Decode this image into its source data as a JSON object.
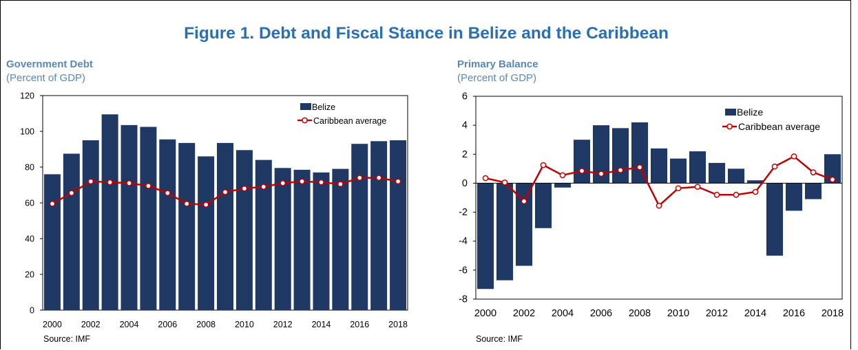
{
  "figure_title": "Figure 1. Debt and Fiscal Stance in Belize and the Caribbean",
  "colors": {
    "bar": "#1f3864",
    "line": "#c00000",
    "title": "#2a6fb0",
    "subtitle": "#5a87b5"
  },
  "panels": [
    {
      "title": "Government Debt",
      "subtitle": "(Percent of GDP)",
      "source": "Source: IMF"
    },
    {
      "title": "Primary Balance",
      "subtitle": "(Percent of GDP)",
      "source": "Source: IMF"
    }
  ],
  "chart_data": [
    {
      "type": "bar",
      "title": "Government Debt",
      "subtitle": "(Percent of GDP)",
      "ylim": [
        0,
        120
      ],
      "yticks": [
        0,
        20,
        40,
        60,
        80,
        100,
        120
      ],
      "categories": [
        2000,
        2001,
        2002,
        2003,
        2004,
        2005,
        2006,
        2007,
        2008,
        2009,
        2010,
        2011,
        2012,
        2013,
        2014,
        2015,
        2016,
        2017,
        2018
      ],
      "xtick_labels": [
        "2000",
        "2002",
        "2004",
        "2006",
        "2008",
        "2010",
        "2012",
        "2014",
        "2016",
        "2018"
      ],
      "legend_position": "top-right",
      "series": [
        {
          "name": "Belize",
          "type": "bar",
          "values": [
            76,
            87.5,
            95,
            109.5,
            103.5,
            102.5,
            95.5,
            93.5,
            86,
            93.5,
            89.5,
            84,
            79.5,
            78.5,
            77,
            79,
            93,
            94.5,
            95
          ]
        },
        {
          "name": "Caribbean average",
          "type": "line",
          "values": [
            59.5,
            65.5,
            72,
            71.5,
            71,
            69.5,
            65.5,
            59.5,
            59,
            66,
            68,
            69,
            71,
            72,
            71.5,
            70.5,
            74,
            74,
            72
          ]
        }
      ],
      "source": "Source: IMF"
    },
    {
      "type": "bar",
      "title": "Primary Balance",
      "subtitle": "(Percent of GDP)",
      "ylim": [
        -8,
        6
      ],
      "yticks": [
        -8,
        -6,
        -4,
        -2,
        0,
        2,
        4,
        6
      ],
      "categories": [
        2000,
        2001,
        2002,
        2003,
        2004,
        2005,
        2006,
        2007,
        2008,
        2009,
        2010,
        2011,
        2012,
        2013,
        2014,
        2015,
        2016,
        2017,
        2018
      ],
      "xtick_labels": [
        "2000",
        "2002",
        "2004",
        "2006",
        "2008",
        "2010",
        "2012",
        "2014",
        "2016",
        "2018"
      ],
      "legend_position": "top-right",
      "series": [
        {
          "name": "Belize",
          "type": "bar",
          "values": [
            -7.3,
            -6.7,
            -5.7,
            -3.1,
            -0.3,
            3.0,
            4.0,
            3.8,
            4.2,
            2.4,
            1.7,
            2.2,
            1.4,
            1.0,
            0.2,
            -5.0,
            -1.9,
            -1.1,
            2.0
          ]
        },
        {
          "name": "Caribbean average",
          "type": "line",
          "values": [
            0.35,
            0.05,
            -1.25,
            1.25,
            0.55,
            0.85,
            0.65,
            0.9,
            1.1,
            -1.55,
            -0.35,
            -0.25,
            -0.8,
            -0.8,
            -0.6,
            1.15,
            1.85,
            0.75,
            0.25
          ]
        }
      ],
      "source": "Source: IMF"
    }
  ]
}
